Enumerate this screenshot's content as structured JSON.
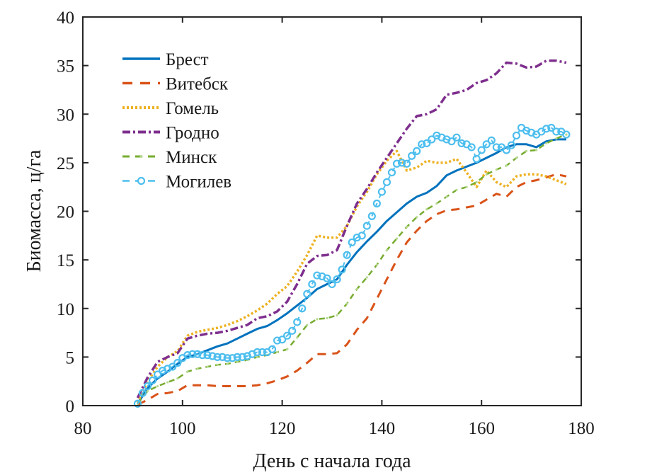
{
  "chart_data": {
    "type": "line",
    "title": "",
    "xlabel": "День с начала года",
    "ylabel": "Биомасса, ц/га",
    "xlim": [
      80,
      180
    ],
    "ylim": [
      0,
      40
    ],
    "xticks": [
      80,
      100,
      120,
      140,
      160,
      180
    ],
    "yticks": [
      0,
      5,
      10,
      15,
      20,
      25,
      30,
      35,
      40
    ],
    "xtick_labels": [
      "80",
      "100",
      "120",
      "140",
      "160",
      "180"
    ],
    "ytick_labels": [
      "0",
      "5",
      "10",
      "15",
      "20",
      "25",
      "30",
      "35",
      "40"
    ],
    "grid": false,
    "legend_position": "top-left",
    "series": [
      {
        "name": "Брест",
        "color": "#0072BD",
        "style": "solid",
        "x": [
          91,
          93,
          95,
          97,
          99,
          101,
          103,
          105,
          107,
          109,
          111,
          113,
          115,
          117,
          119,
          121,
          123,
          125,
          127,
          129,
          131,
          133,
          135,
          137,
          139,
          141,
          143,
          145,
          147,
          149,
          151,
          153,
          155,
          157,
          159,
          161,
          163,
          165,
          167,
          169,
          171,
          173,
          175,
          177
        ],
        "values": [
          0.2,
          1.8,
          2.8,
          3.5,
          4.3,
          5.0,
          5.3,
          5.7,
          6.1,
          6.4,
          6.9,
          7.4,
          7.9,
          8.2,
          8.8,
          9.5,
          10.3,
          11.1,
          12.0,
          12.5,
          13.0,
          14.5,
          15.8,
          16.9,
          17.9,
          19.0,
          19.9,
          20.8,
          21.5,
          21.9,
          22.6,
          23.7,
          24.2,
          24.6,
          25.0,
          25.5,
          26.0,
          26.6,
          26.9,
          26.9,
          26.6,
          27.2,
          27.4,
          27.4
        ]
      },
      {
        "name": "Витебск",
        "color": "#D95319",
        "style": "dashed",
        "x": [
          91,
          93,
          95,
          97,
          99,
          101,
          103,
          105,
          107,
          109,
          111,
          113,
          115,
          117,
          119,
          121,
          123,
          125,
          127,
          129,
          131,
          133,
          135,
          137,
          139,
          141,
          143,
          145,
          147,
          149,
          151,
          153,
          155,
          157,
          159,
          161,
          163,
          165,
          167,
          169,
          171,
          173,
          175,
          177
        ],
        "values": [
          0.1,
          0.6,
          1.2,
          1.3,
          1.5,
          2.1,
          2.1,
          2.1,
          2.0,
          2.0,
          2.0,
          2.0,
          2.1,
          2.3,
          2.6,
          3.0,
          3.6,
          4.4,
          5.3,
          5.3,
          5.4,
          6.3,
          7.8,
          9.0,
          11.0,
          13.0,
          15.0,
          16.8,
          18.0,
          19.0,
          19.7,
          20.1,
          20.2,
          20.4,
          20.6,
          21.2,
          21.8,
          21.5,
          22.5,
          23.0,
          23.2,
          23.5,
          23.8,
          23.6
        ]
      },
      {
        "name": "Гомель",
        "color": "#EDB120",
        "style": "dotted",
        "x": [
          91,
          93,
          95,
          97,
          99,
          101,
          103,
          105,
          107,
          109,
          111,
          113,
          115,
          117,
          119,
          121,
          123,
          125,
          127,
          129,
          131,
          133,
          135,
          137,
          139,
          141,
          143,
          145,
          147,
          149,
          151,
          153,
          155,
          157,
          159,
          161,
          163,
          165,
          167,
          169,
          171,
          173,
          175,
          177
        ],
        "values": [
          0.3,
          2.5,
          4.0,
          5.0,
          5.6,
          7.2,
          7.6,
          7.8,
          8.0,
          8.3,
          8.7,
          9.2,
          9.8,
          10.5,
          11.5,
          12.3,
          13.8,
          15.5,
          17.5,
          17.3,
          17.3,
          18.5,
          20.5,
          22.0,
          23.8,
          25.2,
          26.2,
          24.2,
          24.5,
          25.2,
          25.0,
          25.0,
          25.4,
          24.0,
          22.5,
          24.2,
          23.0,
          22.5,
          23.6,
          23.8,
          23.8,
          23.6,
          23.2,
          22.8
        ]
      },
      {
        "name": "Гродно",
        "color": "#7E2F8E",
        "style": "dashdot",
        "x": [
          91,
          93,
          95,
          97,
          99,
          101,
          103,
          105,
          107,
          109,
          111,
          113,
          115,
          117,
          119,
          121,
          123,
          125,
          127,
          129,
          131,
          133,
          135,
          137,
          139,
          141,
          143,
          145,
          147,
          149,
          151,
          153,
          155,
          157,
          159,
          161,
          163,
          165,
          167,
          169,
          171,
          173,
          175,
          177
        ],
        "values": [
          0.8,
          2.9,
          4.5,
          5.0,
          5.4,
          6.9,
          7.2,
          7.4,
          7.5,
          7.7,
          8.0,
          8.3,
          9.0,
          9.2,
          9.7,
          10.7,
          12.5,
          14.6,
          15.4,
          15.5,
          16.0,
          18.5,
          20.8,
          22.3,
          24.0,
          25.5,
          27.0,
          28.5,
          29.8,
          30.0,
          30.5,
          32.0,
          32.2,
          32.5,
          33.2,
          33.5,
          34.2,
          35.3,
          35.2,
          34.8,
          34.9,
          35.5,
          35.5,
          35.3
        ]
      },
      {
        "name": "Минск",
        "color": "#77AC30",
        "style": "dashed-star",
        "x": [
          91,
          93,
          95,
          97,
          99,
          101,
          103,
          105,
          107,
          109,
          111,
          113,
          115,
          117,
          119,
          121,
          123,
          125,
          127,
          129,
          131,
          133,
          135,
          137,
          139,
          141,
          143,
          145,
          147,
          149,
          151,
          153,
          155,
          157,
          159,
          161,
          163,
          165,
          167,
          169,
          171,
          173,
          175,
          177
        ],
        "values": [
          0.2,
          1.5,
          2.0,
          2.4,
          2.8,
          3.5,
          3.8,
          4.0,
          4.2,
          4.3,
          4.5,
          4.7,
          5.0,
          5.2,
          5.5,
          5.8,
          7.0,
          8.3,
          8.9,
          9.0,
          9.3,
          10.5,
          12.0,
          13.2,
          14.5,
          16.0,
          17.2,
          18.4,
          19.4,
          20.2,
          20.8,
          21.5,
          22.2,
          22.5,
          23.0,
          23.8,
          24.3,
          24.7,
          25.5,
          26.2,
          26.3,
          27.0,
          27.5,
          27.9
        ]
      },
      {
        "name": "Могилев",
        "color": "#4DBEEE",
        "style": "dashed-circle",
        "x": [
          91,
          92,
          93,
          94,
          95,
          96,
          97,
          98,
          99,
          100,
          101,
          102,
          103,
          104,
          105,
          106,
          107,
          108,
          109,
          110,
          111,
          112,
          113,
          114,
          115,
          116,
          117,
          118,
          119,
          120,
          121,
          122,
          123,
          124,
          125,
          126,
          127,
          128,
          129,
          130,
          131,
          132,
          133,
          134,
          135,
          136,
          137,
          138,
          139,
          140,
          141,
          142,
          143,
          144,
          145,
          146,
          147,
          148,
          149,
          150,
          151,
          152,
          153,
          154,
          155,
          156,
          157,
          158,
          159,
          160,
          161,
          162,
          163,
          164,
          165,
          166,
          167,
          168,
          169,
          170,
          171,
          172,
          173,
          174,
          175,
          176,
          177
        ],
        "values": [
          0.2,
          1.3,
          2.0,
          2.6,
          3.2,
          3.6,
          3.8,
          4.0,
          4.4,
          4.9,
          5.2,
          5.3,
          5.3,
          5.2,
          5.2,
          5.1,
          5.0,
          5.0,
          4.9,
          4.9,
          5.0,
          5.0,
          5.1,
          5.3,
          5.5,
          5.5,
          5.5,
          5.8,
          6.7,
          6.8,
          7.2,
          7.7,
          8.6,
          10.0,
          11.5,
          12.5,
          13.4,
          13.3,
          13.1,
          12.5,
          13.0,
          14.0,
          15.5,
          16.8,
          17.3,
          17.5,
          18.5,
          19.5,
          20.8,
          22.0,
          23.0,
          24.0,
          24.9,
          25.0,
          24.9,
          25.7,
          26.2,
          26.9,
          27.0,
          27.4,
          27.8,
          27.6,
          27.4,
          27.2,
          27.6,
          27.0,
          26.9,
          26.6,
          25.4,
          26.3,
          26.9,
          27.3,
          26.6,
          26.6,
          26.3,
          26.8,
          27.8,
          28.6,
          28.3,
          28.1,
          27.9,
          28.2,
          28.5,
          28.6,
          28.2,
          28.2,
          27.9
        ]
      }
    ]
  }
}
